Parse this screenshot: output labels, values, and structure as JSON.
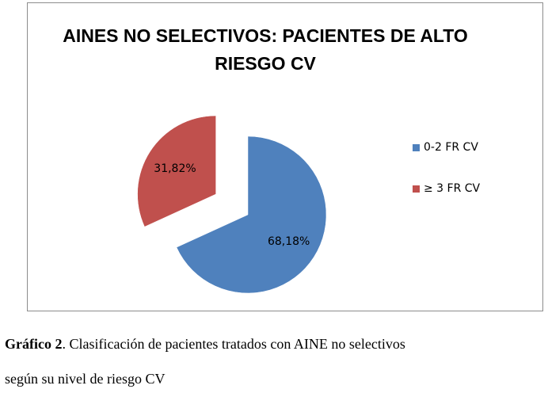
{
  "chart_data": {
    "type": "pie",
    "title_lines": [
      "AINES NO SELECTIVOS: PACIENTES DE ALTO",
      "RIESGO CV"
    ],
    "categories": [
      "0-2 FR CV",
      "≥ 3 FR CV"
    ],
    "values": [
      68.18,
      31.82
    ],
    "data_labels": [
      "68,18%",
      "31,82%"
    ],
    "colors": [
      "#4F81BD",
      "#C0504D"
    ],
    "exploded": [
      false,
      true
    ],
    "legend_position": "right"
  },
  "caption": {
    "label": "Gráfico 2",
    "text_after_label": ". Clasificación de pacientes tratados con AINE no selectivos",
    "line2": "según su nivel de riesgo CV"
  }
}
